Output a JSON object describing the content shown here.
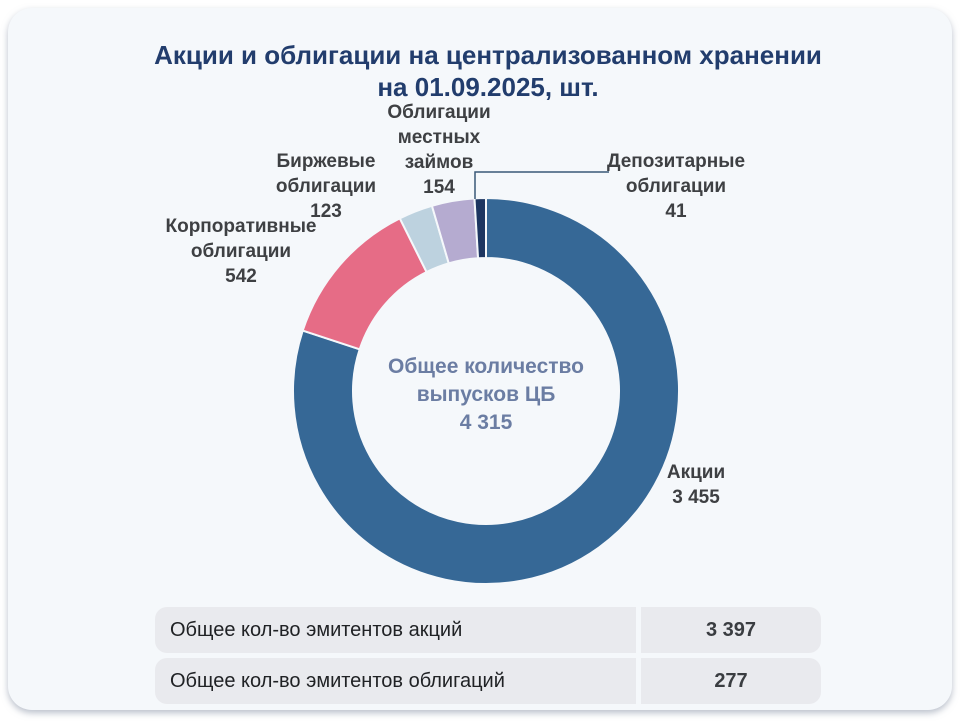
{
  "title": {
    "line1": "Акции и облигации на централизованном хранении",
    "line2": "на 01.09.2025, шт."
  },
  "colors": {
    "card_background": "#F5F8FB",
    "title_text": "#223D6D",
    "label_text": "#3E4043",
    "center_text": "#6B7DA3",
    "table_row_background": "#E9EAEE",
    "leader_line": "#3A5878"
  },
  "chart_data": {
    "type": "pie",
    "subtype": "donut",
    "title": "Акции и облигации на централизованном хранении на 01.09.2025, шт.",
    "unit": "шт.",
    "start_angle_deg": -90,
    "direction": "clockwise",
    "center_label": {
      "text": "Общее количество выпусков ЦБ",
      "value": 4315,
      "value_display": "4 315"
    },
    "segments": [
      {
        "id": "akcii",
        "label": "Акции",
        "value": 3455,
        "value_display": "3 455",
        "color": "#366896"
      },
      {
        "id": "korporativnye",
        "label": "Корпоративные облигации",
        "value": 542,
        "value_display": "542",
        "color": "#E66C86"
      },
      {
        "id": "birzhevye",
        "label": "Биржевые облигации",
        "value": 123,
        "value_display": "123",
        "color": "#BDD2DF"
      },
      {
        "id": "mestnye",
        "label": "Облигации местных займов",
        "value": 154,
        "value_display": "154",
        "color": "#B5ABD0"
      },
      {
        "id": "depozitarnye",
        "label": "Депозитарные облигации",
        "value": 41,
        "value_display": "41",
        "color": "#1D3661"
      }
    ]
  },
  "summary": {
    "rows": [
      {
        "label": "Общее кол-во эмитентов акций",
        "value": "3 397"
      },
      {
        "label": "Общее кол-во эмитентов облигаций",
        "value": "277"
      }
    ]
  }
}
